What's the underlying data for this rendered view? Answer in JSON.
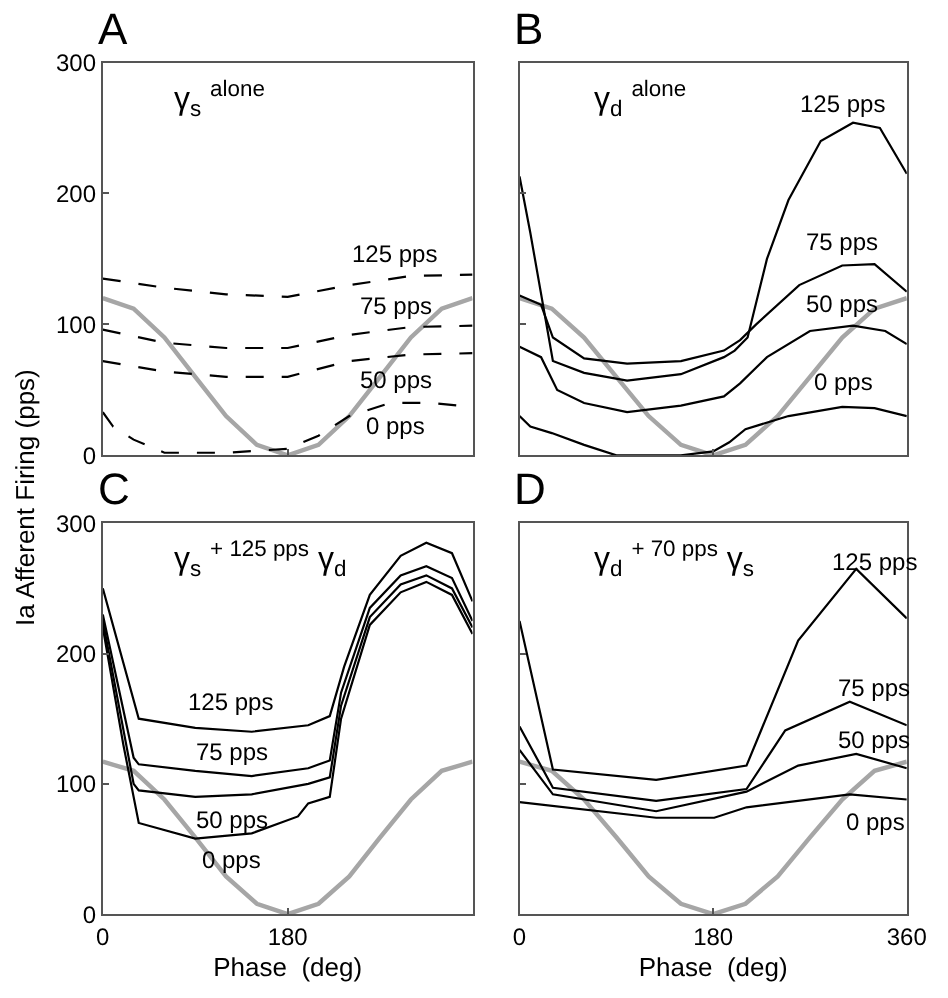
{
  "chart_data": [
    {
      "type": "line",
      "title": "A",
      "subtitle": "γ$_{s}$ $^{alone}$",
      "ylabel": "Ia Afferent Firing (pps)",
      "xlim": [
        0,
        360
      ],
      "ylim": [
        0,
        300
      ],
      "xticks": [
        0,
        180,
        360
      ],
      "yticks": [
        0,
        100,
        200,
        300
      ],
      "tick_labels": "y",
      "legend": false,
      "series": [
        {
          "color": "#a6a6a6",
          "x": [
            0,
            30,
            60,
            90,
            120,
            150,
            180,
            210,
            240,
            270,
            300,
            330,
            360
          ],
          "values": [
            120,
            112,
            90,
            60,
            30,
            8,
            0,
            8,
            30,
            60,
            90,
            112,
            120
          ]
        },
        {
          "name": "125 pps",
          "color": "#000000",
          "line_style": "dashed",
          "x": [
            0,
            60,
            120,
            180,
            240,
            300,
            360
          ],
          "values": [
            135,
            128,
            123,
            121,
            130,
            137,
            138
          ]
        },
        {
          "name": "75 pps",
          "color": "#000000",
          "line_style": "dashed",
          "x": [
            0,
            60,
            120,
            180,
            240,
            300,
            360
          ],
          "values": [
            96,
            86,
            82,
            82,
            92,
            98,
            99
          ]
        },
        {
          "name": "50 pps",
          "color": "#000000",
          "line_style": "dashed",
          "x": [
            0,
            60,
            120,
            180,
            240,
            300,
            360
          ],
          "values": [
            72,
            64,
            60,
            60,
            72,
            77,
            78
          ]
        },
        {
          "name": "0 pps",
          "color": "#000000",
          "line_style": "dashed",
          "x": [
            0,
            10,
            30,
            60,
            120,
            180,
            210,
            240,
            280,
            320,
            360
          ],
          "values": [
            33,
            22,
            12,
            2,
            2,
            5,
            15,
            30,
            40,
            40,
            37
          ]
        }
      ]
    },
    {
      "type": "line",
      "title": "B",
      "subtitle": "γ$_{d}$ $^{alone}$",
      "xlim": [
        0,
        360
      ],
      "ylim": [
        0,
        300
      ],
      "xticks": [
        0,
        180,
        360
      ],
      "yticks": [
        0,
        100,
        200,
        300
      ],
      "tick_labels": false,
      "legend": false,
      "series": [
        {
          "color": "#a6a6a6",
          "x": [
            0,
            30,
            60,
            90,
            120,
            150,
            180,
            210,
            240,
            270,
            300,
            330,
            360
          ],
          "values": [
            120,
            112,
            90,
            60,
            30,
            8,
            0,
            8,
            30,
            60,
            90,
            112,
            120
          ]
        },
        {
          "name": "125 pps",
          "color": "#000000",
          "x": [
            0,
            10,
            31,
            60,
            100,
            150,
            190,
            200,
            212,
            230,
            250,
            280,
            310,
            335,
            360
          ],
          "values": [
            213,
            170,
            72,
            63,
            57,
            62,
            75,
            80,
            90,
            150,
            195,
            240,
            254,
            250,
            215
          ]
        },
        {
          "name": "75 pps",
          "color": "#000000",
          "x": [
            0,
            20,
            31,
            60,
            100,
            150,
            190,
            205,
            220,
            260,
            300,
            330,
            360
          ],
          "values": [
            122,
            115,
            90,
            74,
            70,
            72,
            80,
            88,
            100,
            130,
            145,
            146,
            125
          ]
        },
        {
          "name": "50 pps",
          "color": "#000000",
          "x": [
            0,
            20,
            35,
            60,
            100,
            150,
            190,
            205,
            230,
            270,
            310,
            340,
            360
          ],
          "values": [
            83,
            75,
            50,
            40,
            33,
            38,
            45,
            55,
            75,
            95,
            99,
            95,
            85
          ]
        },
        {
          "name": "0 pps",
          "color": "#000000",
          "x": [
            0,
            10,
            30,
            60,
            90,
            150,
            180,
            195,
            210,
            250,
            300,
            330,
            360
          ],
          "values": [
            30,
            22,
            17,
            8,
            0,
            0,
            3,
            10,
            20,
            30,
            37,
            36,
            30
          ]
        }
      ]
    },
    {
      "type": "line",
      "title": "C",
      "subtitle": "γ$_{s}$ $^{+ 125 pps}$ γ$_{d}$",
      "xlabel": "Phase  (deg)",
      "xlim": [
        0,
        360
      ],
      "ylim": [
        0,
        300
      ],
      "xticks": [
        0,
        180,
        {
          "value": 360,
          "label": null
        }
      ],
      "yticks": [
        0,
        100,
        200,
        300
      ],
      "legend": false,
      "series": [
        {
          "color": "#a6a6a6",
          "x": [
            0,
            30,
            60,
            90,
            120,
            150,
            180,
            210,
            240,
            270,
            300,
            330,
            360
          ],
          "values": [
            117,
            110,
            88,
            59,
            29,
            8,
            0,
            8,
            29,
            59,
            88,
            110,
            117
          ]
        },
        {
          "name": "125 pps",
          "color": "#000000",
          "x": [
            0,
            35,
            90,
            145,
            200,
            221,
            235,
            260,
            290,
            315,
            340,
            360
          ],
          "values": [
            250,
            150,
            143,
            140,
            145,
            152,
            190,
            245,
            275,
            285,
            277,
            240
          ]
        },
        {
          "name": "75 pps",
          "color": "#000000",
          "x": [
            0,
            30,
            35,
            90,
            145,
            200,
            221,
            232,
            260,
            290,
            315,
            340,
            360
          ],
          "values": [
            230,
            120,
            115,
            110,
            106,
            112,
            118,
            170,
            235,
            260,
            267,
            258,
            225
          ]
        },
        {
          "name": "50 pps",
          "color": "#000000",
          "x": [
            0,
            30,
            35,
            90,
            145,
            200,
            221,
            232,
            260,
            290,
            315,
            340,
            360
          ],
          "values": [
            225,
            100,
            95,
            90,
            92,
            100,
            105,
            160,
            228,
            253,
            260,
            250,
            220
          ]
        },
        {
          "name": "0 pps",
          "color": "#000000",
          "x": [
            0,
            20,
            35,
            90,
            145,
            190,
            200,
            221,
            232,
            260,
            290,
            315,
            340,
            360
          ],
          "values": [
            220,
            130,
            70,
            58,
            62,
            75,
            85,
            90,
            150,
            222,
            247,
            255,
            245,
            215
          ]
        }
      ]
    },
    {
      "type": "line",
      "title": "D",
      "subtitle": "γ$_{d}$ $^{+ 70 pps}$ γ$_{s}$",
      "xlabel": "Phase  (deg)",
      "xlim": [
        0,
        360
      ],
      "ylim": [
        0,
        300
      ],
      "xticks": [
        0,
        180,
        360
      ],
      "yticks": [
        0,
        100,
        200,
        300
      ],
      "tick_labels": "x",
      "legend": false,
      "series": [
        {
          "color": "#a6a6a6",
          "x": [
            0,
            30,
            60,
            90,
            120,
            150,
            180,
            210,
            240,
            270,
            300,
            330,
            360
          ],
          "values": [
            117,
            110,
            88,
            59,
            29,
            8,
            0,
            8,
            29,
            59,
            88,
            110,
            117
          ]
        },
        {
          "name": "125 pps",
          "color": "#000000",
          "x": [
            0,
            31,
            127,
            211,
            259,
            313,
            360
          ],
          "values": [
            225,
            111,
            103,
            114,
            210,
            265,
            227
          ]
        },
        {
          "name": "75 pps",
          "color": "#000000",
          "x": [
            0,
            31,
            127,
            211,
            247,
            307,
            360
          ],
          "values": [
            144,
            97,
            87,
            96,
            141,
            163,
            145
          ]
        },
        {
          "name": "50 pps",
          "color": "#000000",
          "x": [
            0,
            31,
            127,
            211,
            259,
            313,
            360
          ],
          "values": [
            126,
            92,
            79,
            94,
            114,
            123,
            112
          ]
        },
        {
          "name": "0 pps",
          "color": "#000000",
          "x": [
            0,
            127,
            181,
            211,
            307,
            360
          ],
          "values": [
            86,
            74,
            74,
            82,
            92,
            88
          ]
        }
      ]
    }
  ]
}
